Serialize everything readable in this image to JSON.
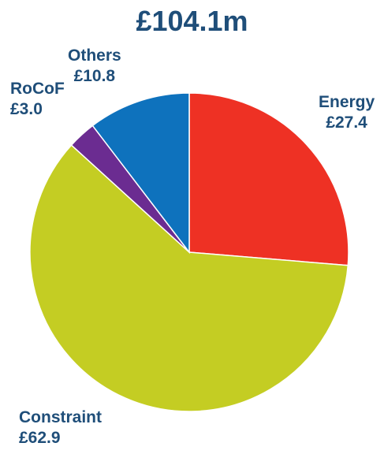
{
  "chart_data": {
    "type": "pie",
    "title": "£104.1m",
    "slices": [
      {
        "name": "Energy",
        "value": 27.4,
        "label": "£27.4",
        "color": "#ee3124"
      },
      {
        "name": "Constraint",
        "value": 62.9,
        "label": "£62.9",
        "color": "#c4cd23"
      },
      {
        "name": "RoCoF",
        "value": 3.0,
        "label": "£3.0",
        "color": "#6b2c91"
      },
      {
        "name": "Others",
        "value": 10.8,
        "label": "£10.8",
        "color": "#0e72bd"
      }
    ],
    "start_angle_deg": 0,
    "direction": "clockwise",
    "legend": "none"
  }
}
